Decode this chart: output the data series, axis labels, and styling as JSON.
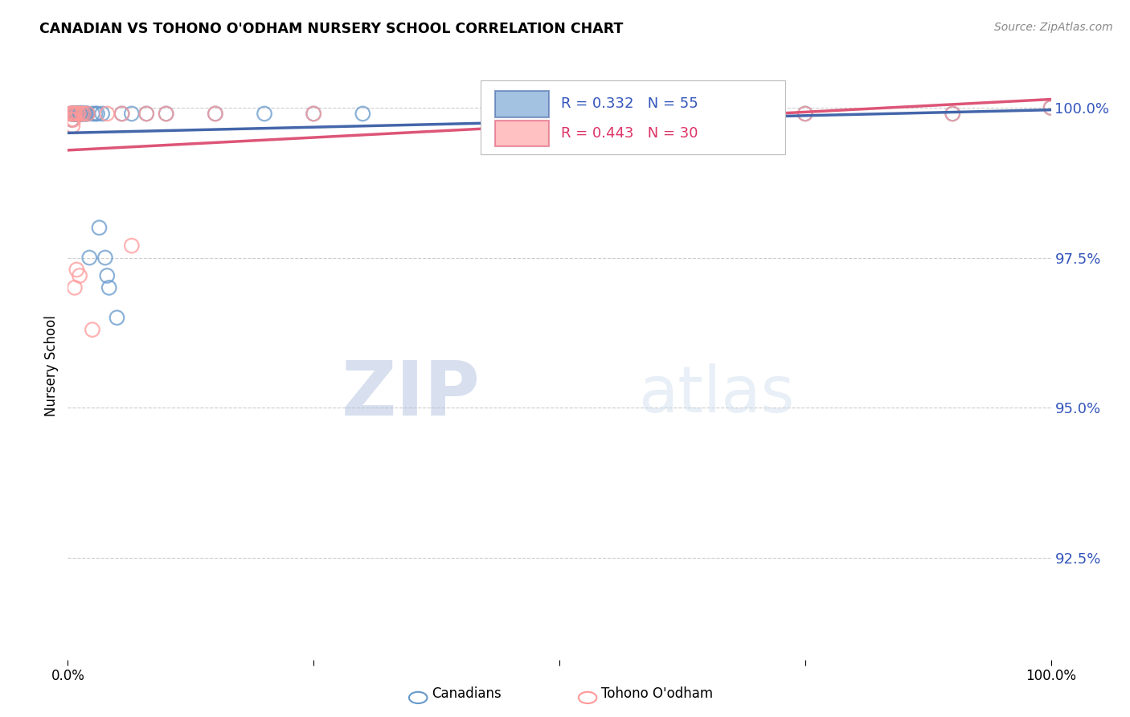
{
  "title": "CANADIAN VS TOHONO O'ODHAM NURSERY SCHOOL CORRELATION CHART",
  "source": "Source: ZipAtlas.com",
  "ylabel": "Nursery School",
  "legend_label1": "Canadians",
  "legend_label2": "Tohono O'odham",
  "r_canadian": 0.332,
  "n_canadian": 55,
  "r_tohono": 0.443,
  "n_tohono": 30,
  "color_canadian": "#6699CC",
  "color_tohono": "#FF9999",
  "color_canadian_line": "#4466AA",
  "color_tohono_line": "#DD5577",
  "ytick_labels": [
    "92.5%",
    "95.0%",
    "97.5%",
    "100.0%"
  ],
  "ytick_values": [
    0.925,
    0.95,
    0.975,
    1.0
  ],
  "ylim_min": 0.908,
  "ylim_max": 1.006,
  "watermark_zip": "ZIP",
  "watermark_atlas": "atlas",
  "canadians_x": [
    0.003,
    0.004,
    0.004,
    0.005,
    0.005,
    0.005,
    0.006,
    0.006,
    0.007,
    0.007,
    0.007,
    0.008,
    0.008,
    0.008,
    0.009,
    0.009,
    0.009,
    0.01,
    0.01,
    0.011,
    0.011,
    0.012,
    0.012,
    0.013,
    0.013,
    0.014,
    0.015,
    0.015,
    0.016,
    0.017,
    0.018,
    0.019,
    0.02,
    0.022,
    0.025,
    0.028,
    0.03,
    0.032,
    0.035,
    0.038,
    0.04,
    0.042,
    0.05,
    0.055,
    0.065,
    0.08,
    0.1,
    0.15,
    0.2,
    0.25,
    0.3,
    0.5,
    0.75,
    0.9,
    1.0
  ],
  "canadians_y": [
    0.999,
    0.999,
    0.998,
    0.999,
    0.999,
    0.999,
    0.999,
    0.999,
    0.999,
    0.999,
    0.999,
    0.999,
    0.999,
    0.999,
    0.999,
    0.999,
    0.999,
    0.999,
    0.999,
    0.999,
    0.999,
    0.999,
    0.999,
    0.999,
    0.999,
    0.999,
    0.999,
    0.999,
    0.999,
    0.999,
    0.999,
    0.999,
    0.999,
    0.975,
    0.999,
    0.999,
    0.999,
    0.98,
    0.999,
    0.975,
    0.972,
    0.97,
    0.965,
    0.999,
    0.999,
    0.999,
    0.999,
    0.999,
    0.999,
    0.999,
    0.999,
    0.999,
    0.999,
    0.999,
    1.0
  ],
  "tohono_x": [
    0.003,
    0.004,
    0.004,
    0.005,
    0.005,
    0.006,
    0.006,
    0.007,
    0.007,
    0.008,
    0.009,
    0.01,
    0.011,
    0.012,
    0.014,
    0.016,
    0.02,
    0.025,
    0.04,
    0.055,
    0.065,
    0.08,
    0.1,
    0.15,
    0.25,
    0.5,
    0.6,
    0.75,
    0.9,
    1.0
  ],
  "tohono_y": [
    0.999,
    0.999,
    0.998,
    0.999,
    0.997,
    0.999,
    0.998,
    0.999,
    0.97,
    0.999,
    0.973,
    0.999,
    0.999,
    0.972,
    0.999,
    0.999,
    0.999,
    0.963,
    0.999,
    0.999,
    0.977,
    0.999,
    0.999,
    0.999,
    0.999,
    0.999,
    0.999,
    0.999,
    0.999,
    1.0
  ]
}
